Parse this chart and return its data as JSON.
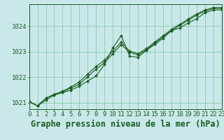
{
  "background_color": "#cae8ea",
  "plot_bg_color": "#cae8ea",
  "grid_color": "#88ccaa",
  "line_color": "#1a5e20",
  "marker_color": "#1a5e20",
  "title": "Graphe pression niveau de la mer (hPa)",
  "ylim": [
    1020.75,
    1024.85
  ],
  "yticks": [
    1021,
    1022,
    1023,
    1024
  ],
  "series": [
    [
      1021.05,
      1020.88,
      1021.1,
      1021.3,
      1021.4,
      1021.5,
      1021.65,
      1021.85,
      1022.05,
      1022.5,
      1023.15,
      1023.62,
      1022.82,
      1022.78,
      1023.05,
      1023.28,
      1023.52,
      1023.82,
      1023.92,
      1024.12,
      1024.28,
      1024.52,
      1024.62,
      1024.63
    ],
    [
      1021.05,
      1020.88,
      1021.18,
      1021.33,
      1021.43,
      1021.58,
      1021.73,
      1022.02,
      1022.32,
      1022.57,
      1022.92,
      1023.27,
      1022.97,
      1022.87,
      1023.07,
      1023.32,
      1023.58,
      1023.82,
      1024.02,
      1024.22,
      1024.42,
      1024.58,
      1024.68,
      1024.68
    ],
    [
      1021.05,
      1020.88,
      1021.18,
      1021.33,
      1021.45,
      1021.62,
      1021.82,
      1022.12,
      1022.42,
      1022.67,
      1023.02,
      1023.37,
      1023.02,
      1022.92,
      1023.12,
      1023.37,
      1023.62,
      1023.87,
      1024.07,
      1024.27,
      1024.47,
      1024.62,
      1024.72,
      1024.72
    ]
  ],
  "title_fontsize": 8.5,
  "tick_fontsize": 6.5
}
